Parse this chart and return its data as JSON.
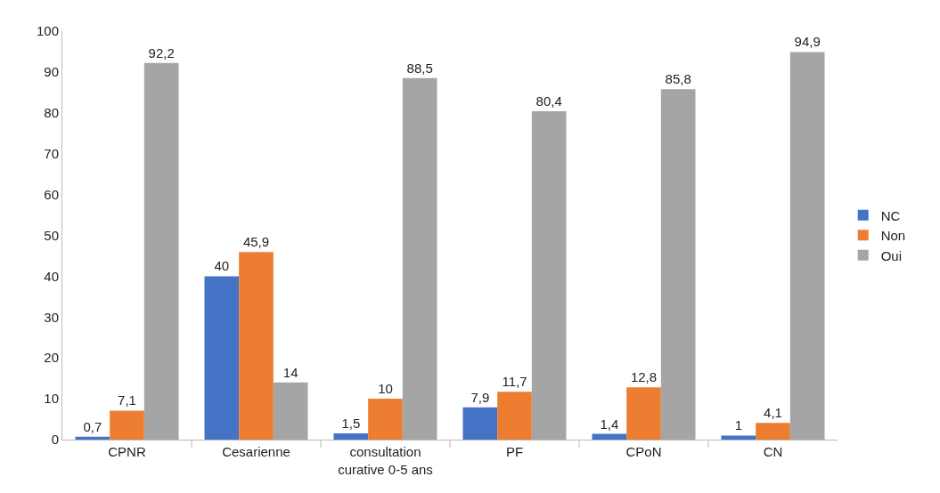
{
  "chart_data": {
    "type": "bar",
    "categories": [
      "CPNR",
      "Cesarienne",
      "consultation curative 0-5 ans",
      "PF",
      "CPoN",
      "CN"
    ],
    "series": [
      {
        "name": "NC",
        "color": "#4472c4",
        "values": [
          0.7,
          40,
          1.5,
          7.9,
          1.4,
          1
        ],
        "value_labels": [
          "0,7",
          "40",
          "1,5",
          "7,9",
          "1,4",
          "1"
        ]
      },
      {
        "name": "Non",
        "color": "#ed7d31",
        "values": [
          7.1,
          45.9,
          10,
          11.7,
          12.8,
          4.1
        ],
        "value_labels": [
          "7,1",
          "45,9",
          "10",
          "11,7",
          "12,8",
          "4,1"
        ]
      },
      {
        "name": "Oui",
        "color": "#a5a5a5",
        "values": [
          92.2,
          14,
          88.5,
          80.4,
          85.8,
          94.9
        ],
        "value_labels": [
          "92,2",
          "14",
          "88,5",
          "80,4",
          "85,8",
          "94,9"
        ]
      }
    ],
    "ylim": [
      0,
      100
    ],
    "yticks": [
      0,
      10,
      20,
      30,
      40,
      50,
      60,
      70,
      80,
      90,
      100
    ],
    "grid": false,
    "legend": "right"
  }
}
